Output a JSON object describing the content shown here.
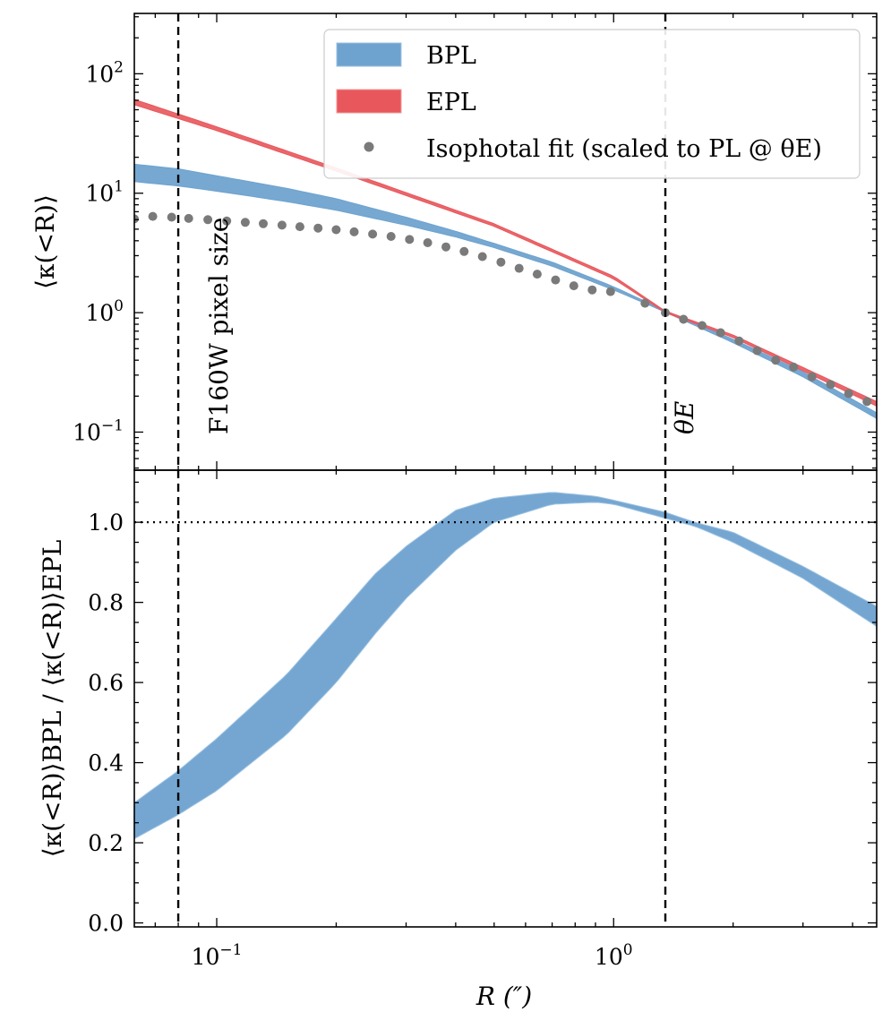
{
  "chart_data": [
    {
      "type": "line",
      "panel": "top",
      "xscale": "log",
      "yscale": "log",
      "xlim": [
        0.062,
        4.6
      ],
      "ylim": [
        0.048,
        320
      ],
      "ylabel": "⟨κ(<R)⟩",
      "ytick_labels": [
        {
          "value": 0.1,
          "base": "10",
          "exp": "−1"
        },
        {
          "value": 1,
          "base": "10",
          "exp": "0"
        },
        {
          "value": 10,
          "base": "10",
          "exp": "1"
        },
        {
          "value": 100,
          "base": "10",
          "exp": "2"
        }
      ],
      "legend": {
        "position": "top-right",
        "entries": [
          {
            "label": "BPL",
            "color": "#6fa3cf"
          },
          {
            "label": "EPL",
            "color": "#e8575c"
          },
          {
            "label": "Isophotal fit (scaled to PL @ θE)",
            "color": "#7a7a7a"
          }
        ]
      },
      "series": [
        {
          "name": "BPL",
          "kind": "band",
          "color": "#6fa3cf",
          "x": [
            0.062,
            0.08,
            0.1,
            0.15,
            0.2,
            0.3,
            0.4,
            0.5,
            0.7,
            1.0,
            1.35,
            2.0,
            3.0,
            4.6
          ],
          "lower": [
            12.5,
            11.5,
            10.4,
            8.5,
            7.2,
            5.4,
            4.3,
            3.5,
            2.45,
            1.55,
            1.01,
            0.56,
            0.29,
            0.13
          ],
          "upper": [
            17.5,
            16.0,
            14.0,
            11.0,
            9.0,
            6.3,
            4.8,
            3.8,
            2.65,
            1.65,
            1.04,
            0.6,
            0.32,
            0.145
          ]
        },
        {
          "name": "EPL",
          "kind": "band",
          "color": "#e8575c",
          "x": [
            0.062,
            0.1,
            0.2,
            0.5,
            1.0,
            1.35,
            2.0,
            4.6
          ],
          "lower": [
            55.0,
            33.4,
            15.3,
            5.28,
            1.92,
            1.0,
            0.62,
            0.165
          ],
          "upper": [
            61.0,
            36.0,
            16.3,
            5.55,
            2.02,
            1.03,
            0.65,
            0.18
          ]
        },
        {
          "name": "Isophotal fit (scaled to PL @ θE)",
          "kind": "scatter",
          "color": "#7a7a7a",
          "x": [
            0.062,
            0.069,
            0.077,
            0.085,
            0.095,
            0.106,
            0.118,
            0.131,
            0.146,
            0.162,
            0.18,
            0.2,
            0.222,
            0.247,
            0.275,
            0.306,
            0.34,
            0.378,
            0.42,
            0.467,
            0.52,
            0.578,
            0.642,
            0.714,
            0.794,
            0.883,
            0.982,
            1.2,
            1.35,
            1.5,
            1.67,
            1.86,
            2.07,
            2.3,
            2.56,
            2.84,
            3.16,
            3.52,
            3.91,
            4.35
          ],
          "y": [
            6.1,
            6.4,
            6.3,
            6.15,
            6.0,
            5.85,
            5.7,
            5.55,
            5.4,
            5.25,
            5.1,
            4.95,
            4.75,
            4.55,
            4.35,
            4.1,
            3.85,
            3.55,
            3.25,
            2.95,
            2.65,
            2.35,
            2.1,
            1.88,
            1.68,
            1.55,
            1.5,
            1.2,
            1.0,
            0.88,
            0.78,
            0.68,
            0.58,
            0.48,
            0.4,
            0.35,
            0.29,
            0.25,
            0.21,
            0.18
          ]
        }
      ],
      "vlines": [
        {
          "x": 0.08,
          "label": "F160W pixel size"
        },
        {
          "x": 1.35,
          "label": "θE"
        }
      ]
    },
    {
      "type": "line",
      "panel": "bottom",
      "xscale": "log",
      "yscale": "linear",
      "xlim": [
        0.062,
        4.6
      ],
      "ylim": [
        -0.01,
        1.13
      ],
      "xlabel": "R (″)",
      "ylabel": "⟨κ(<R)⟩BPL / ⟨κ(<R)⟩EPL",
      "xtick_labels": [
        {
          "value": 0.1,
          "base": "10",
          "exp": "−1"
        },
        {
          "value": 1,
          "base": "10",
          "exp": "0"
        }
      ],
      "ytick_labels": [
        "0.0",
        "0.2",
        "0.4",
        "0.6",
        "0.8",
        "1.0"
      ],
      "series": [
        {
          "name": "BPL",
          "kind": "band",
          "color": "#6fa3cf",
          "x": [
            0.062,
            0.08,
            0.1,
            0.15,
            0.2,
            0.25,
            0.3,
            0.4,
            0.5,
            0.7,
            0.9,
            1.0,
            1.35,
            1.6,
            2.0,
            3.0,
            4.6
          ],
          "lower": [
            0.21,
            0.27,
            0.33,
            0.47,
            0.6,
            0.72,
            0.81,
            0.93,
            1.0,
            1.045,
            1.05,
            1.045,
            1.01,
            0.99,
            0.95,
            0.86,
            0.74
          ],
          "upper": [
            0.3,
            0.38,
            0.46,
            0.62,
            0.76,
            0.87,
            0.94,
            1.03,
            1.06,
            1.075,
            1.065,
            1.055,
            1.025,
            1.0,
            0.975,
            0.89,
            0.79
          ]
        }
      ],
      "hlines": [
        {
          "y": 1.0,
          "style": "dotted"
        }
      ],
      "vlines": [
        {
          "x": 0.08
        },
        {
          "x": 1.35
        }
      ]
    }
  ]
}
